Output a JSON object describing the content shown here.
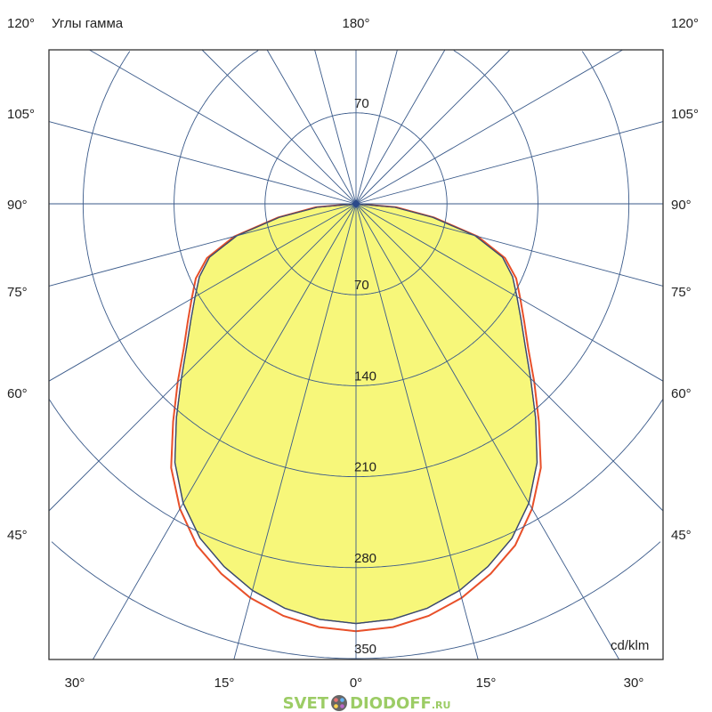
{
  "chart_data": {
    "type": "polar",
    "title": "Углы гамма",
    "unit_label": "cd/klm",
    "top_angle_label": "180°",
    "side_angle_labels": [
      "120°",
      "105°",
      "90°",
      "75°",
      "60°",
      "45°"
    ],
    "bottom_angle_labels": [
      "30°",
      "15°",
      "0°",
      "15°",
      "30°"
    ],
    "ring_values": [
      70,
      140,
      210,
      280,
      350
    ],
    "ring_labels": {
      "top": "70",
      "bottom": [
        "70",
        "140",
        "210",
        "280",
        "350"
      ]
    },
    "spoke_step_deg": 15,
    "grid": true,
    "gamma_deg": [
      0,
      5,
      10,
      15,
      20,
      25,
      30,
      35,
      40,
      45,
      50,
      55,
      60,
      65,
      70,
      75,
      80,
      85,
      90
    ],
    "series": [
      {
        "color": "#e8502a",
        "values": [
          329,
          327,
          322,
          314,
          303,
          290,
          271,
          248,
          219,
          194,
          173,
          158,
          146,
          136,
          122,
          97,
          61,
          31,
          0
        ]
      },
      {
        "color": "#3c4a6e",
        "values": [
          323,
          321,
          316,
          308,
          297,
          284,
          266,
          243,
          215,
          190,
          170,
          155,
          143,
          133,
          120,
          95,
          60,
          30,
          0
        ]
      }
    ],
    "fill_color": "#f7f77a",
    "grid_color": "#3a5a8a"
  },
  "watermark": {
    "left": "SVET",
    "right": "DIODOFF",
    "suffix": ".RU"
  }
}
